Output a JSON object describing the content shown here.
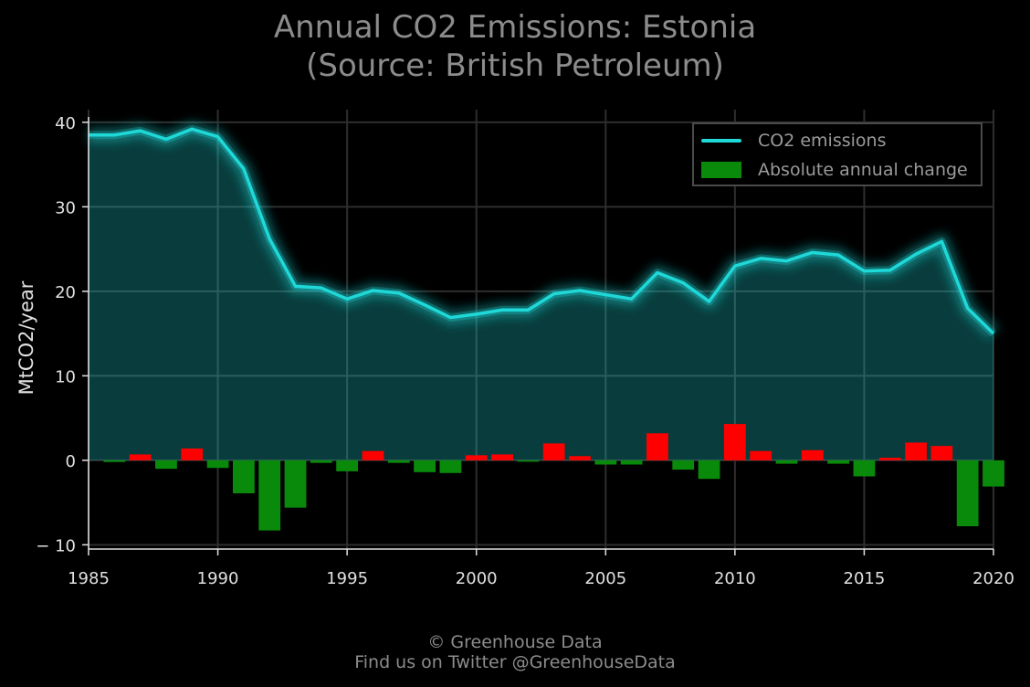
{
  "header": {
    "title_line1": "Annual CO2 Emissions: Estonia",
    "title_line2": "(Source: British Petroleum)"
  },
  "footer": {
    "line1": "© Greenhouse Data",
    "line2": "Find us on Twitter @GreenhouseData"
  },
  "colors": {
    "background": "#000000",
    "line": "#1fd8d8",
    "area_fill": "#0a4a4a",
    "increase": "#ff0000",
    "decrease": "#0a8a0a",
    "grid": "#2e2e2e",
    "text": "#8c8c8c"
  },
  "chart_data": {
    "type": "line",
    "title": "Annual CO2 Emissions: Estonia\n(Source: British Petroleum)",
    "xlabel": "",
    "ylabel": "MtCO2/year",
    "xlim": [
      1985,
      2020
    ],
    "ylim": [
      -10.5,
      41.5
    ],
    "grid": true,
    "legend_position": "top-right",
    "x_ticks": [
      "1985",
      "1990",
      "1995",
      "2000",
      "2005",
      "2010",
      "2015",
      "2020"
    ],
    "y_ticks": [
      "− 10",
      "0",
      "10",
      "20",
      "30",
      "40"
    ],
    "x": [
      1985,
      1986,
      1987,
      1988,
      1989,
      1990,
      1991,
      1992,
      1993,
      1994,
      1995,
      1996,
      1997,
      1998,
      1999,
      2000,
      2001,
      2002,
      2003,
      2004,
      2005,
      2006,
      2007,
      2008,
      2009,
      2010,
      2011,
      2012,
      2013,
      2014,
      2015,
      2016,
      2017,
      2018,
      2019,
      2020
    ],
    "series": [
      {
        "name": "CO2 emissions",
        "type": "line",
        "values": [
          38.5,
          38.5,
          39.0,
          38.0,
          39.2,
          38.3,
          34.5,
          26.2,
          20.6,
          20.4,
          19.1,
          20.1,
          19.8,
          18.4,
          16.9,
          17.3,
          17.8,
          17.8,
          19.7,
          20.1,
          19.6,
          19.1,
          22.2,
          21.0,
          18.8,
          23.0,
          23.9,
          23.6,
          24.6,
          24.3,
          22.4,
          22.5,
          24.4,
          25.9,
          18.0,
          15.0
        ]
      },
      {
        "name": "Absolute annual change",
        "type": "bar",
        "x": [
          1986,
          1987,
          1988,
          1989,
          1990,
          1991,
          1992,
          1993,
          1994,
          1995,
          1996,
          1997,
          1998,
          1999,
          2000,
          2001,
          2002,
          2003,
          2004,
          2005,
          2006,
          2007,
          2008,
          2009,
          2010,
          2011,
          2012,
          2013,
          2014,
          2015,
          2016,
          2017,
          2018,
          2019,
          2020
        ],
        "values": [
          -0.2,
          0.7,
          -1.0,
          1.4,
          -0.9,
          -3.9,
          -8.3,
          -5.6,
          -0.3,
          -1.3,
          1.1,
          -0.3,
          -1.4,
          -1.5,
          0.6,
          0.7,
          -0.1,
          2.0,
          0.5,
          -0.5,
          -0.5,
          3.2,
          -1.1,
          -2.2,
          4.3,
          1.1,
          -0.4,
          1.2,
          -0.4,
          -1.9,
          0.3,
          2.1,
          1.7,
          -7.8,
          -3.1
        ]
      }
    ]
  }
}
